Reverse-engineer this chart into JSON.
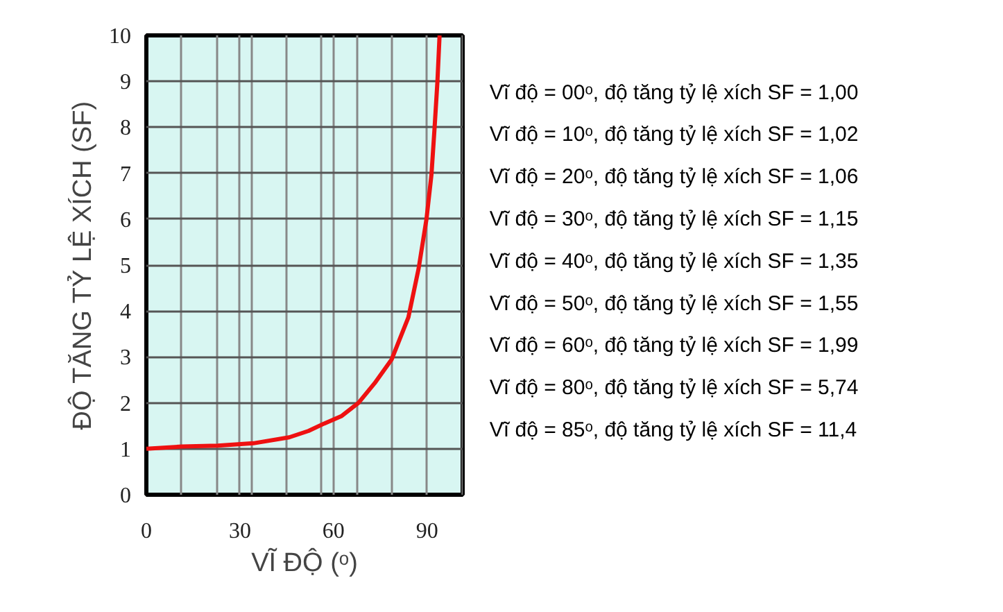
{
  "chart_data": {
    "type": "line",
    "xlabel": "VĨ ĐỘ (ᵒ)",
    "ylabel": "ĐỘ TĂNG TỶ LỆ XÍCH (SF)",
    "xlim": [
      0,
      101.4
    ],
    "ylim": [
      0,
      10
    ],
    "xticks": [
      0,
      {
        "value": 11.25,
        "label": null
      },
      {
        "value": 22.5,
        "label": null
      },
      30,
      {
        "value": 33.75,
        "label": null
      },
      {
        "value": 45,
        "label": null
      },
      {
        "value": 56.25,
        "label": null
      },
      60,
      {
        "value": 67.5,
        "label": null
      },
      {
        "value": 78.75,
        "label": null
      },
      90,
      {
        "value": 101.25,
        "label": null
      }
    ],
    "yticks": [
      0,
      1,
      2,
      3,
      4,
      5,
      6,
      7,
      8,
      9,
      10
    ],
    "grid": true,
    "series": [
      {
        "color": "#ee1111",
        "x": [
          0,
          11.4,
          22.9,
          34.3,
          45.8,
          52,
          57,
          62.5,
          68,
          73.2,
          78.6,
          84,
          87.3,
          89.8,
          91.4,
          92.4,
          93.3,
          94
        ],
        "values": [
          1.0,
          1.05,
          1.07,
          1.12,
          1.25,
          1.39,
          1.55,
          1.71,
          2.0,
          2.43,
          2.94,
          3.86,
          4.93,
          6.0,
          6.97,
          7.99,
          8.98,
          10
        ]
      }
    ],
    "annotations": [
      "Vĩ độ = 00ᵒ, độ tăng tỷ lệ xích SF = 1,00",
      "Vĩ độ = 10ᵒ, độ tăng tỷ lệ xích SF = 1,02",
      "Vĩ độ = 20ᵒ, độ tăng tỷ lệ xích SF = 1,06",
      "Vĩ độ = 30ᵒ, độ tăng tỷ lệ xích SF = 1,15",
      "Vĩ độ = 40ᵒ, độ tăng tỷ lệ xích SF = 1,35",
      "Vĩ độ = 50ᵒ, độ tăng tỷ lệ xích SF = 1,55",
      "Vĩ độ = 60ᵒ, độ tăng tỷ lệ xích SF = 1,99",
      "Vĩ độ = 80ᵒ, độ tăng tỷ lệ xích SF = 5,74",
      "Vĩ độ = 85ᵒ, độ tăng tỷ lệ xích SF = 11,4"
    ]
  }
}
